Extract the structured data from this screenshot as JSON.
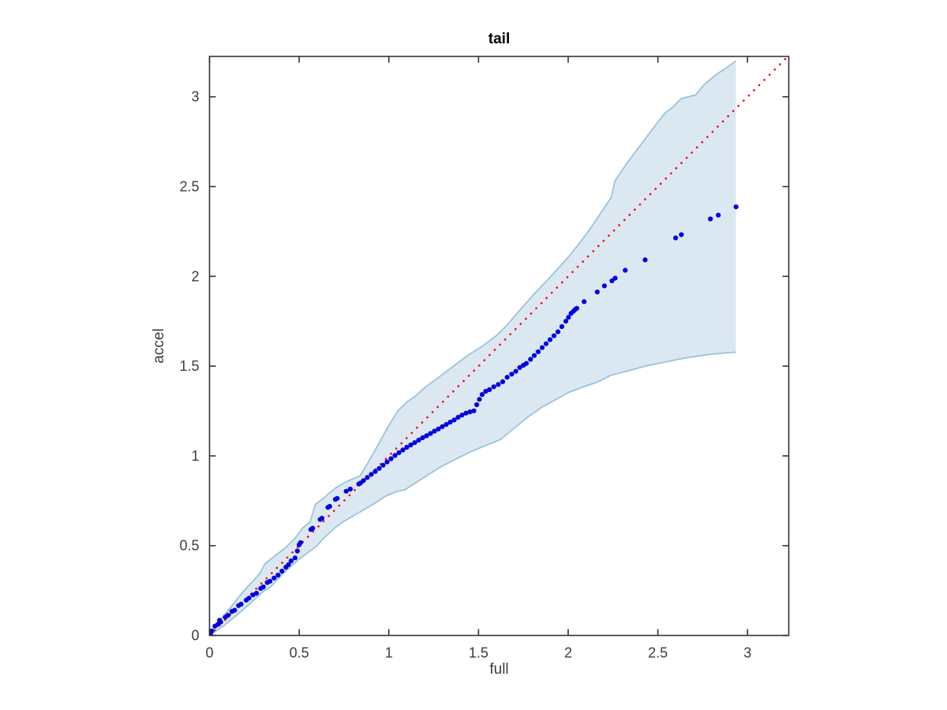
{
  "chart_data": {
    "type": "scatter",
    "title": "tail",
    "xlabel": "full",
    "ylabel": "accel",
    "xlim": [
      0,
      3.23
    ],
    "ylim": [
      0,
      3.225
    ],
    "xticks": [
      0,
      0.5,
      1,
      1.5,
      2,
      2.5,
      3
    ],
    "yticks": [
      0,
      0.5,
      1,
      1.5,
      2,
      2.5,
      3
    ],
    "xtick_labels": [
      "0",
      "0.5",
      "1",
      "1.5",
      "2",
      "2.5",
      "3"
    ],
    "ytick_labels": [
      "0",
      "0.5",
      "1",
      "1.5",
      "2",
      "2.5",
      "3"
    ],
    "grid": false,
    "legend": "none",
    "colors": {
      "qq_points": "#0000e0",
      "reference_line": "#ff0000",
      "band_fill": "#dbe8f2",
      "band_edge": "#99c3dc",
      "axis": "#333333",
      "text": "#3c3c3c"
    },
    "reference_line": {
      "style": "dotted",
      "x": [
        0,
        3.225
      ],
      "y": [
        0,
        3.225
      ]
    },
    "band_cutoff_x": 2.935,
    "band_upper": [
      [
        0,
        0.01
      ],
      [
        0.06,
        0.085
      ],
      [
        0.12,
        0.16
      ],
      [
        0.18,
        0.235
      ],
      [
        0.24,
        0.3
      ],
      [
        0.28,
        0.345
      ],
      [
        0.31,
        0.4
      ],
      [
        0.36,
        0.44
      ],
      [
        0.42,
        0.485
      ],
      [
        0.48,
        0.545
      ],
      [
        0.52,
        0.6
      ],
      [
        0.56,
        0.63
      ],
      [
        0.59,
        0.73
      ],
      [
        0.63,
        0.76
      ],
      [
        0.7,
        0.82
      ],
      [
        0.76,
        0.855
      ],
      [
        0.84,
        0.89
      ],
      [
        0.9,
        0.99
      ],
      [
        0.95,
        1.08
      ],
      [
        1.0,
        1.17
      ],
      [
        1.05,
        1.25
      ],
      [
        1.1,
        1.3
      ],
      [
        1.15,
        1.335
      ],
      [
        1.2,
        1.38
      ],
      [
        1.28,
        1.44
      ],
      [
        1.36,
        1.5
      ],
      [
        1.44,
        1.56
      ],
      [
        1.52,
        1.61
      ],
      [
        1.6,
        1.67
      ],
      [
        1.66,
        1.73
      ],
      [
        1.72,
        1.8
      ],
      [
        1.8,
        1.89
      ],
      [
        1.88,
        1.975
      ],
      [
        1.95,
        2.05
      ],
      [
        2.02,
        2.13
      ],
      [
        2.09,
        2.22
      ],
      [
        2.14,
        2.29
      ],
      [
        2.2,
        2.38
      ],
      [
        2.24,
        2.44
      ],
      [
        2.26,
        2.53
      ],
      [
        2.32,
        2.62
      ],
      [
        2.38,
        2.7
      ],
      [
        2.44,
        2.78
      ],
      [
        2.47,
        2.82
      ],
      [
        2.54,
        2.91
      ],
      [
        2.58,
        2.94
      ],
      [
        2.63,
        2.99
      ],
      [
        2.71,
        3.01
      ],
      [
        2.76,
        3.07
      ],
      [
        2.82,
        3.12
      ],
      [
        2.88,
        3.16
      ],
      [
        2.935,
        3.2
      ]
    ],
    "band_lower": [
      [
        0,
        0.0
      ],
      [
        0.08,
        0.055
      ],
      [
        0.16,
        0.12
      ],
      [
        0.24,
        0.19
      ],
      [
        0.3,
        0.245
      ],
      [
        0.34,
        0.27
      ],
      [
        0.4,
        0.335
      ],
      [
        0.46,
        0.39
      ],
      [
        0.5,
        0.425
      ],
      [
        0.56,
        0.47
      ],
      [
        0.6,
        0.5
      ],
      [
        0.64,
        0.545
      ],
      [
        0.7,
        0.6
      ],
      [
        0.74,
        0.63
      ],
      [
        0.8,
        0.665
      ],
      [
        0.86,
        0.7
      ],
      [
        0.92,
        0.735
      ],
      [
        0.98,
        0.775
      ],
      [
        1.04,
        0.8
      ],
      [
        1.09,
        0.812
      ],
      [
        1.15,
        0.85
      ],
      [
        1.22,
        0.895
      ],
      [
        1.3,
        0.945
      ],
      [
        1.38,
        0.985
      ],
      [
        1.46,
        1.025
      ],
      [
        1.55,
        1.062
      ],
      [
        1.62,
        1.09
      ],
      [
        1.7,
        1.155
      ],
      [
        1.78,
        1.22
      ],
      [
        1.86,
        1.275
      ],
      [
        1.91,
        1.302
      ],
      [
        2.0,
        1.353
      ],
      [
        2.1,
        1.39
      ],
      [
        2.16,
        1.41
      ],
      [
        2.21,
        1.434
      ],
      [
        2.24,
        1.45
      ],
      [
        2.35,
        1.478
      ],
      [
        2.43,
        1.5
      ],
      [
        2.5,
        1.515
      ],
      [
        2.65,
        1.545
      ],
      [
        2.79,
        1.566
      ],
      [
        2.935,
        1.578
      ]
    ],
    "qq_points": [
      [
        0.005,
        0.008
      ],
      [
        0.012,
        0.025
      ],
      [
        0.03,
        0.052
      ],
      [
        0.046,
        0.062
      ],
      [
        0.056,
        0.085
      ],
      [
        0.062,
        0.075
      ],
      [
        0.088,
        0.102
      ],
      [
        0.103,
        0.112
      ],
      [
        0.125,
        0.134
      ],
      [
        0.14,
        0.14
      ],
      [
        0.162,
        0.166
      ],
      [
        0.176,
        0.174
      ],
      [
        0.205,
        0.197
      ],
      [
        0.22,
        0.208
      ],
      [
        0.242,
        0.226
      ],
      [
        0.262,
        0.235
      ],
      [
        0.285,
        0.262
      ],
      [
        0.3,
        0.27
      ],
      [
        0.322,
        0.295
      ],
      [
        0.337,
        0.302
      ],
      [
        0.36,
        0.32
      ],
      [
        0.382,
        0.336
      ],
      [
        0.404,
        0.358
      ],
      [
        0.426,
        0.38
      ],
      [
        0.44,
        0.394
      ],
      [
        0.455,
        0.415
      ],
      [
        0.477,
        0.432
      ],
      [
        0.49,
        0.47
      ],
      [
        0.5,
        0.505
      ],
      [
        0.508,
        0.517
      ],
      [
        0.565,
        0.59
      ],
      [
        0.575,
        0.597
      ],
      [
        0.617,
        0.646
      ],
      [
        0.627,
        0.653
      ],
      [
        0.66,
        0.713
      ],
      [
        0.67,
        0.719
      ],
      [
        0.702,
        0.758
      ],
      [
        0.712,
        0.763
      ],
      [
        0.762,
        0.803
      ],
      [
        0.785,
        0.815
      ],
      [
        0.832,
        0.843
      ],
      [
        0.842,
        0.849
      ],
      [
        0.858,
        0.862
      ],
      [
        0.88,
        0.88
      ],
      [
        0.902,
        0.897
      ],
      [
        0.924,
        0.913
      ],
      [
        0.946,
        0.93
      ],
      [
        0.968,
        0.948
      ],
      [
        0.99,
        0.966
      ],
      [
        1.012,
        0.984
      ],
      [
        1.034,
        1.002
      ],
      [
        1.056,
        1.018
      ],
      [
        1.078,
        1.033
      ],
      [
        1.1,
        1.048
      ],
      [
        1.122,
        1.061
      ],
      [
        1.144,
        1.074
      ],
      [
        1.166,
        1.088
      ],
      [
        1.188,
        1.101
      ],
      [
        1.21,
        1.112
      ],
      [
        1.232,
        1.125
      ],
      [
        1.254,
        1.138
      ],
      [
        1.276,
        1.15
      ],
      [
        1.298,
        1.163
      ],
      [
        1.32,
        1.175
      ],
      [
        1.342,
        1.188
      ],
      [
        1.364,
        1.2
      ],
      [
        1.386,
        1.215
      ],
      [
        1.408,
        1.227
      ],
      [
        1.43,
        1.238
      ],
      [
        1.452,
        1.245
      ],
      [
        1.474,
        1.251
      ],
      [
        1.49,
        1.285
      ],
      [
        1.505,
        1.315
      ],
      [
        1.52,
        1.342
      ],
      [
        1.54,
        1.36
      ],
      [
        1.561,
        1.369
      ],
      [
        1.585,
        1.385
      ],
      [
        1.61,
        1.398
      ],
      [
        1.635,
        1.413
      ],
      [
        1.66,
        1.438
      ],
      [
        1.685,
        1.455
      ],
      [
        1.708,
        1.471
      ],
      [
        1.73,
        1.492
      ],
      [
        1.75,
        1.505
      ],
      [
        1.767,
        1.515
      ],
      [
        1.79,
        1.538
      ],
      [
        1.811,
        1.559
      ],
      [
        1.833,
        1.58
      ],
      [
        1.855,
        1.603
      ],
      [
        1.877,
        1.625
      ],
      [
        1.899,
        1.647
      ],
      [
        1.921,
        1.669
      ],
      [
        1.943,
        1.691
      ],
      [
        1.965,
        1.72
      ],
      [
        1.987,
        1.75
      ],
      [
        2.002,
        1.772
      ],
      [
        2.016,
        1.794
      ],
      [
        2.028,
        1.805
      ],
      [
        2.038,
        1.815
      ],
      [
        2.048,
        1.822
      ],
      [
        2.089,
        1.859
      ],
      [
        2.162,
        1.913
      ],
      [
        2.202,
        1.947
      ],
      [
        2.244,
        1.975
      ],
      [
        2.262,
        1.99
      ],
      [
        2.318,
        2.034
      ],
      [
        2.429,
        2.092
      ],
      [
        2.599,
        2.214
      ],
      [
        2.631,
        2.232
      ],
      [
        2.793,
        2.32
      ],
      [
        2.837,
        2.341
      ],
      [
        2.936,
        2.387
      ]
    ]
  }
}
